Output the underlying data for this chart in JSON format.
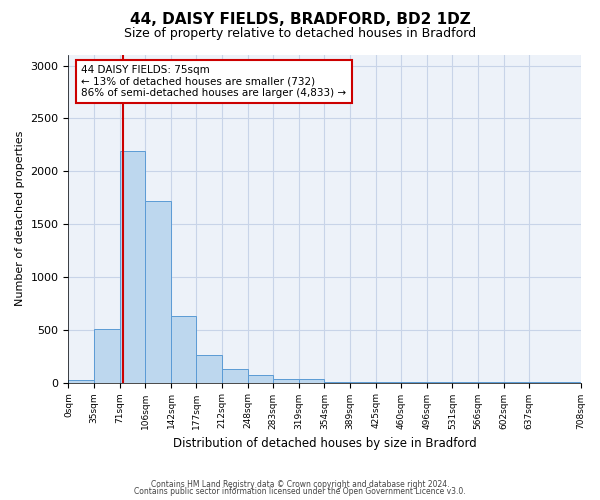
{
  "title": "44, DAISY FIELDS, BRADFORD, BD2 1DZ",
  "subtitle": "Size of property relative to detached houses in Bradford",
  "xlabel": "Distribution of detached houses by size in Bradford",
  "ylabel": "Number of detached properties",
  "bar_values": [
    20,
    510,
    2190,
    1720,
    630,
    260,
    130,
    75,
    30,
    30,
    10,
    5,
    2,
    2,
    2,
    2,
    2,
    2,
    2
  ],
  "bin_edges": [
    0,
    35,
    71,
    106,
    142,
    177,
    212,
    248,
    283,
    319,
    354,
    389,
    425,
    460,
    496,
    531,
    566,
    602,
    637,
    708
  ],
  "tick_labels": [
    "0sqm",
    "35sqm",
    "71sqm",
    "106sqm",
    "142sqm",
    "177sqm",
    "212sqm",
    "248sqm",
    "283sqm",
    "319sqm",
    "354sqm",
    "389sqm",
    "425sqm",
    "460sqm",
    "496sqm",
    "531sqm",
    "566sqm",
    "602sqm",
    "637sqm",
    "708sqm"
  ],
  "bar_color": "#bdd7ee",
  "bar_edge_color": "#5b9bd5",
  "property_line_x": 75,
  "property_line_color": "#cc0000",
  "annotation_line1": "44 DAISY FIELDS: 75sqm",
  "annotation_line2": "← 13% of detached houses are smaller (732)",
  "annotation_line3": "86% of semi-detached houses are larger (4,833) →",
  "annotation_box_color": "#cc0000",
  "ylim": [
    0,
    3100
  ],
  "yticks": [
    0,
    500,
    1000,
    1500,
    2000,
    2500,
    3000
  ],
  "background_color": "#ffffff",
  "plot_bg_color": "#edf2f9",
  "grid_color": "#c8d4e8",
  "footer_line1": "Contains HM Land Registry data © Crown copyright and database right 2024.",
  "footer_line2": "Contains public sector information licensed under the Open Government Licence v3.0."
}
